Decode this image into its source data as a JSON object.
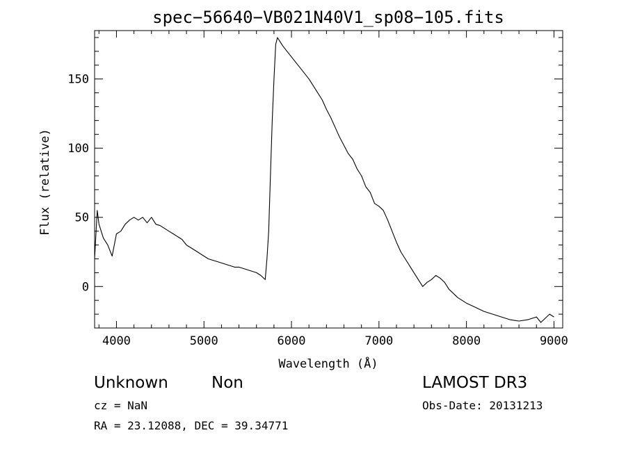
{
  "chart_data": {
    "type": "line",
    "title": "spec−56640−VB021N40V1_sp08−105.fits",
    "xlabel": "Wavelength (Å)",
    "ylabel": "Flux (relative)",
    "xlim": [
      3750,
      9100
    ],
    "ylim": [
      -30,
      185
    ],
    "xticks": [
      4000,
      5000,
      6000,
      7000,
      8000,
      9000
    ],
    "yticks": [
      0,
      50,
      100,
      150
    ],
    "grid": false,
    "line_color": "#000000",
    "series": [
      {
        "x": [
          3750,
          3780,
          3800,
          3850,
          3900,
          3950,
          4000,
          4050,
          4100,
          4150,
          4200,
          4250,
          4300,
          4350,
          4400,
          4450,
          4500,
          4550,
          4600,
          4650,
          4700,
          4750,
          4800,
          4850,
          4900,
          4950,
          5000,
          5050,
          5100,
          5150,
          5200,
          5250,
          5300,
          5350,
          5400,
          5450,
          5500,
          5550,
          5600,
          5650,
          5700,
          5720,
          5740,
          5760,
          5780,
          5800,
          5820,
          5840,
          5860,
          5880,
          5900,
          5950,
          6000,
          6050,
          6100,
          6150,
          6200,
          6250,
          6300,
          6350,
          6400,
          6450,
          6500,
          6550,
          6600,
          6650,
          6700,
          6750,
          6800,
          6850,
          6900,
          6950,
          7000,
          7050,
          7100,
          7150,
          7200,
          7250,
          7300,
          7350,
          7400,
          7450,
          7500,
          7550,
          7600,
          7650,
          7700,
          7750,
          7800,
          7850,
          7900,
          7950,
          8000,
          8100,
          8200,
          8300,
          8400,
          8500,
          8600,
          8700,
          8800,
          8850,
          8900,
          8950,
          9000
        ],
        "y": [
          20,
          55,
          45,
          35,
          30,
          22,
          38,
          40,
          45,
          48,
          50,
          48,
          50,
          46,
          50,
          45,
          44,
          42,
          40,
          38,
          36,
          34,
          30,
          28,
          26,
          24,
          22,
          20,
          19,
          18,
          17,
          16,
          15,
          14,
          14,
          13,
          12,
          11,
          10,
          8,
          5,
          20,
          40,
          80,
          120,
          150,
          175,
          180,
          178,
          176,
          174,
          170,
          166,
          162,
          158,
          154,
          150,
          145,
          140,
          135,
          128,
          122,
          115,
          108,
          102,
          96,
          92,
          85,
          80,
          72,
          68,
          60,
          58,
          55,
          48,
          40,
          32,
          25,
          20,
          15,
          10,
          5,
          0,
          3,
          5,
          8,
          6,
          3,
          -2,
          -5,
          -8,
          -10,
          -12,
          -15,
          -18,
          -20,
          -22,
          -24,
          -25,
          -24,
          -22,
          -26,
          -23,
          -20,
          -22
        ]
      }
    ]
  },
  "info": {
    "class_text": "Unknown",
    "subclass_text": "Non",
    "cz_text": "cz = NaN",
    "radec_text": "RA =  23.12088, DEC =  39.34771",
    "survey_text": "LAMOST DR3",
    "obs_date_text": "Obs-Date: 20131213"
  }
}
